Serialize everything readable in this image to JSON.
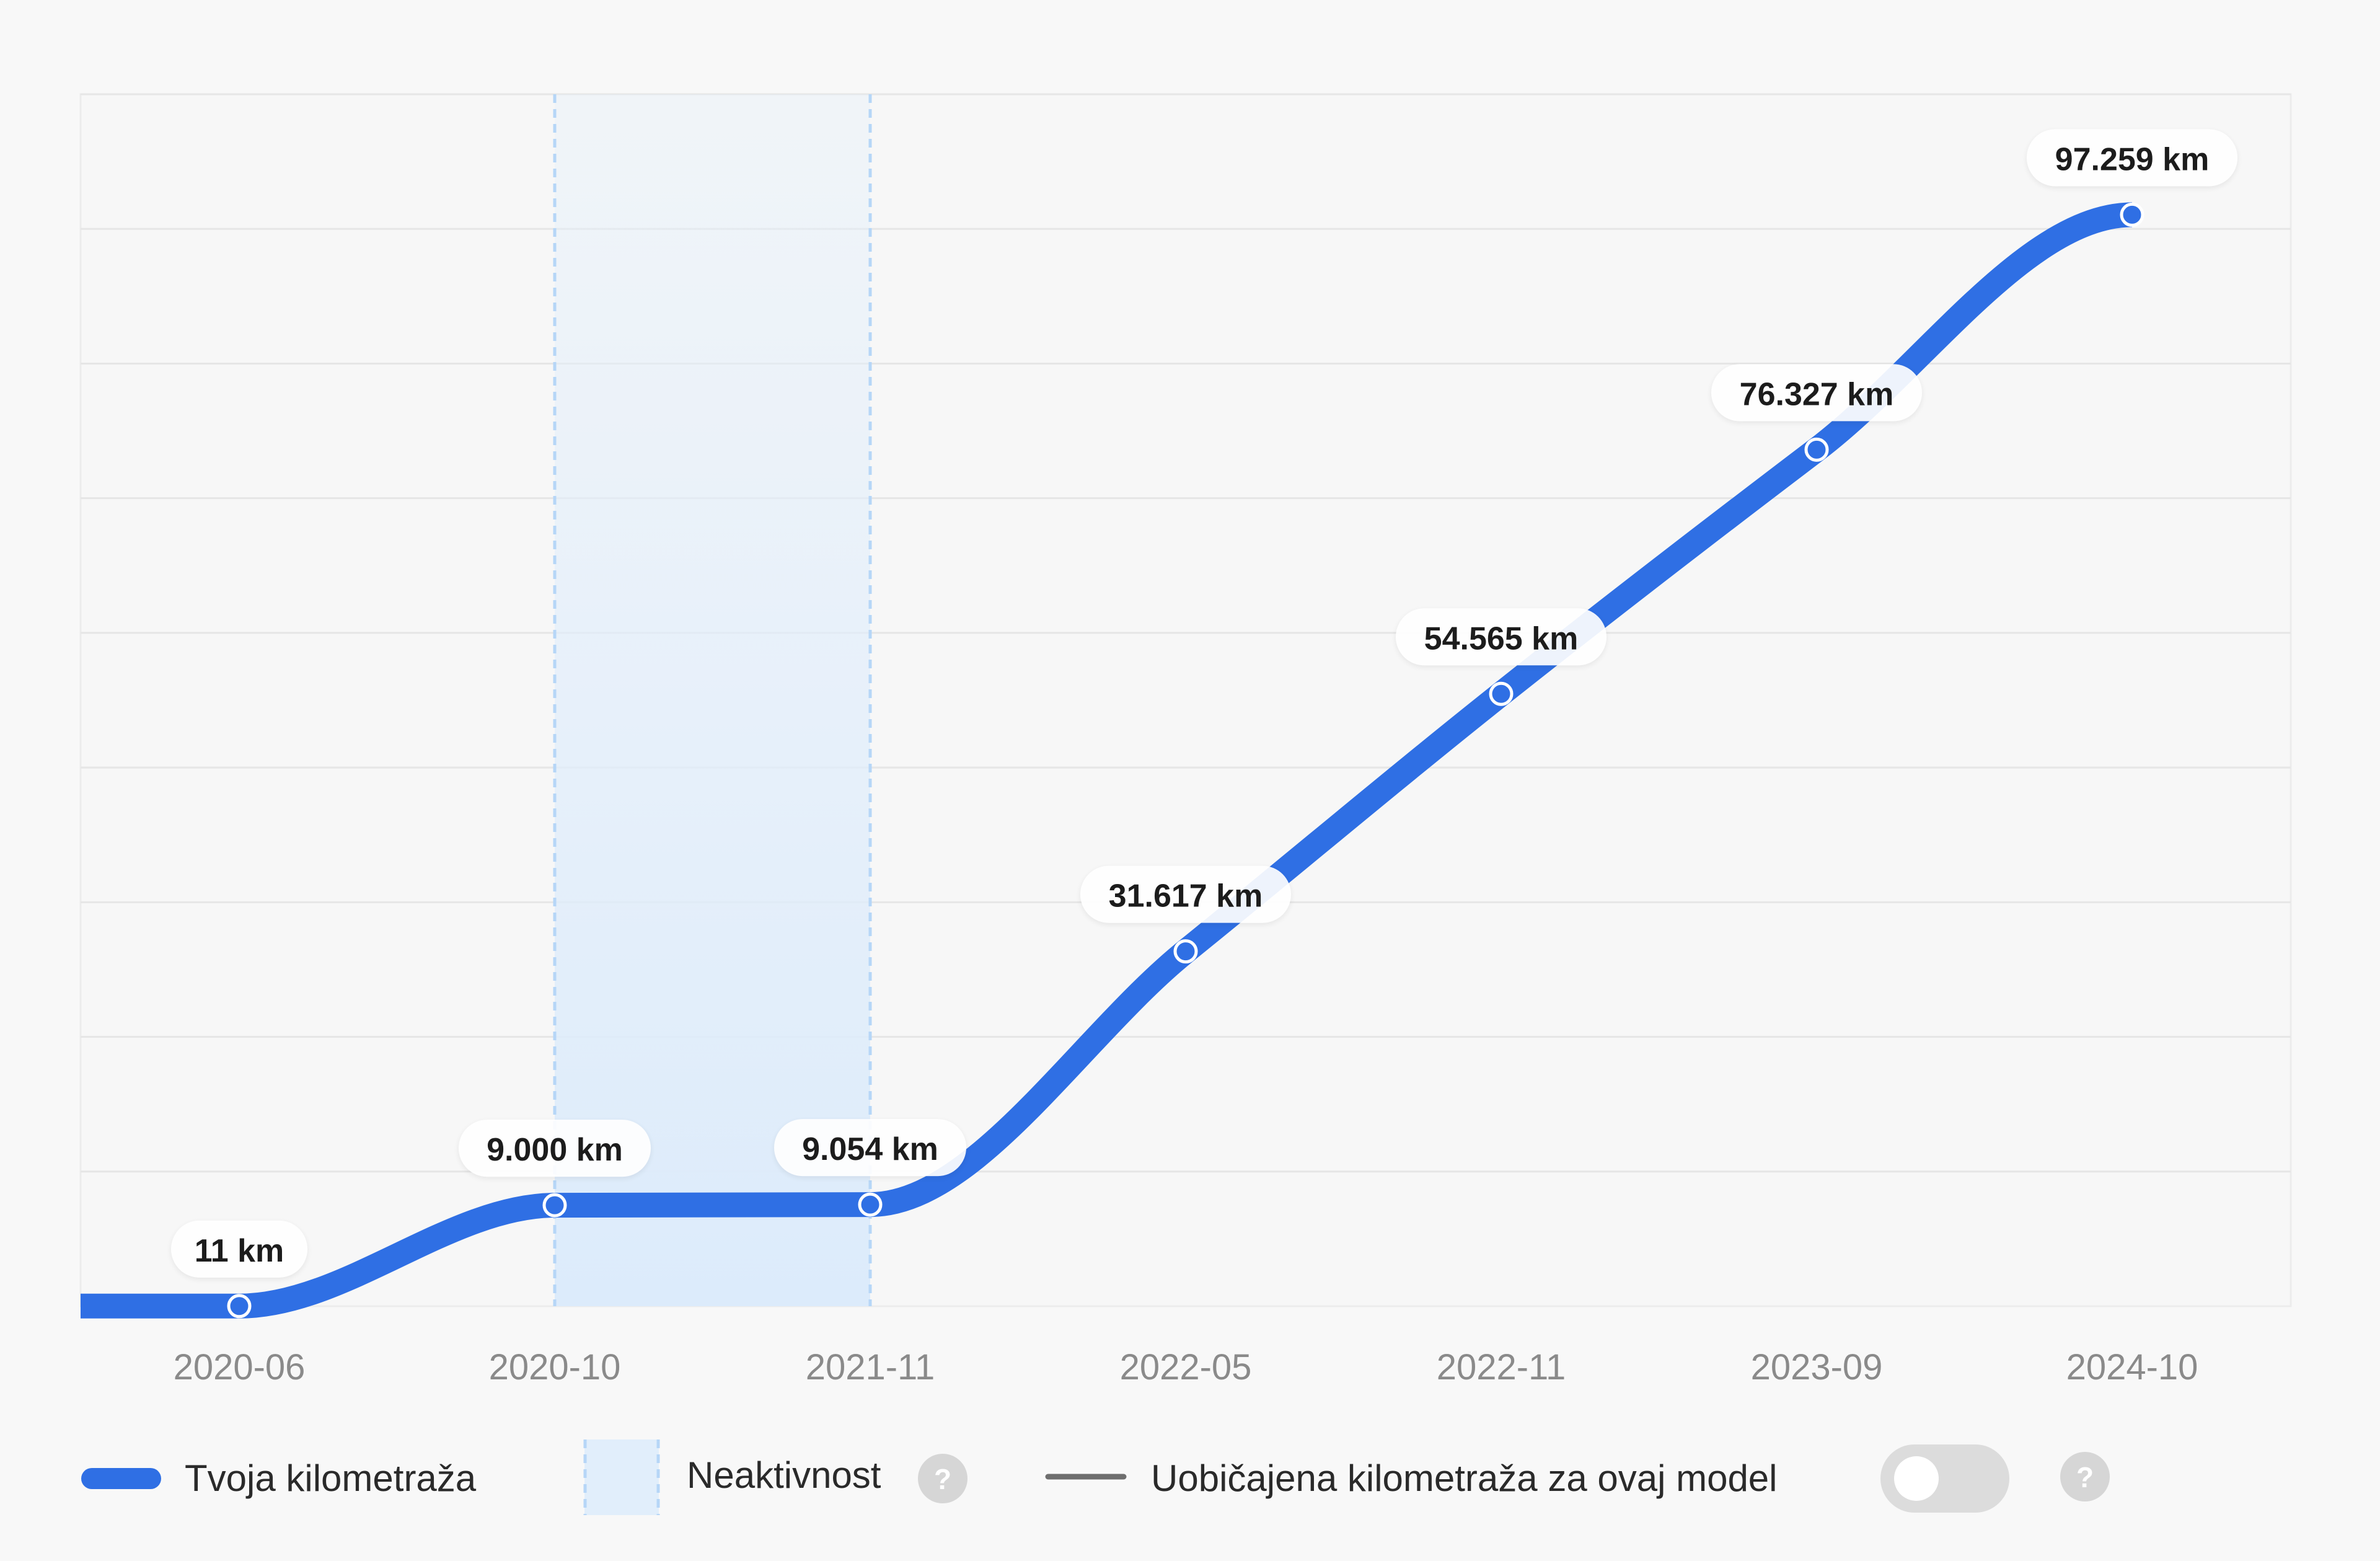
{
  "chart_data": {
    "type": "line",
    "x": [
      "2020-06",
      "2020-10",
      "2021-11",
      "2022-05",
      "2022-11",
      "2023-09",
      "2024-10"
    ],
    "series": [
      {
        "name": "Tvoja kilometraža",
        "values": [
          11,
          9000,
          9054,
          31617,
          54565,
          76327,
          97259
        ],
        "labels": [
          "11 km",
          "9.000 km",
          "9.054 km",
          "31.617 km",
          "54.565 km",
          "76.327 km",
          "97.259 km"
        ]
      }
    ],
    "inactive_range": {
      "from": "2020-10",
      "to": "2021-11"
    },
    "ylim": [
      0,
      108000
    ],
    "grid": true,
    "legend_position": "bottom-left",
    "colors": {
      "line": "#2f6fe4",
      "inactive_fill": "#e1eefb",
      "inactive_border": "#b6d6f7",
      "typical_line": "#6e6e6e",
      "grid": "#e6e6e6",
      "toggle_off": "#dcdcdc",
      "help_icon": "#d6d6d6"
    }
  },
  "legend": {
    "series_label": "Tvoja kilometraža",
    "inactivity_label": "Neaktivnost",
    "typical_label": "Uobičajena kilometraža za ovaj model",
    "help_icon_text": "?"
  },
  "toggle": {
    "checked": false
  }
}
